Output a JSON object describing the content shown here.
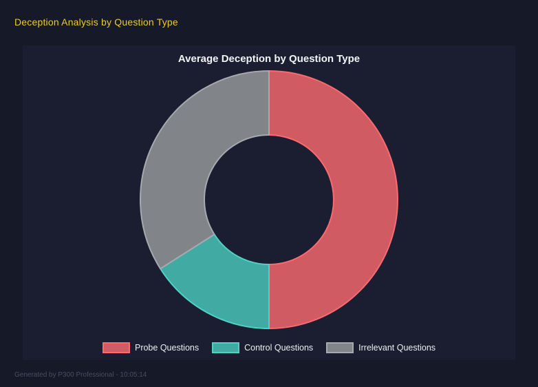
{
  "page": {
    "title": "Deception Analysis by Question Type",
    "footer": "Generated by P300 Professional - 10:05:14"
  },
  "chart_data": {
    "type": "pie",
    "subtype": "doughnut",
    "title": "Average Deception by Question Type",
    "categories": [
      "Probe Questions",
      "Control Questions",
      "Irrelevant Questions"
    ],
    "values_pct": [
      50,
      16,
      34
    ],
    "start_angle_deg_from_top": 0,
    "direction": "clockwise",
    "cutout_ratio": 0.5,
    "legend_position": "bottom",
    "segment_fill_colors": [
      "#d15b63",
      "#41aaa3",
      "#818489"
    ],
    "segment_border_colors": [
      "#fb6a70",
      "#4fd1c5",
      "#a6a9ad"
    ],
    "border_width_px": 2
  },
  "colors": {
    "page_background": "#161927",
    "panel_background": "#1b1e31",
    "page_title_text": "#eec929",
    "chart_title_text": "#f2f3f6",
    "legend_text": "#eceef0",
    "footer_text": "#454e61"
  }
}
